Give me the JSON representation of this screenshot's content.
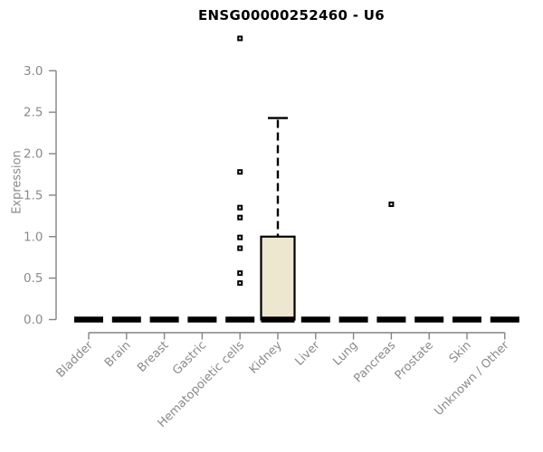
{
  "window": {
    "background_color": "#ffffff"
  },
  "chart_data": {
    "type": "boxplot",
    "title": "ENSG00000252460 - U6",
    "xlabel": "",
    "ylabel": "Expression",
    "ylim": [
      0.0,
      3.0
    ],
    "yticks": [
      0.0,
      0.5,
      1.0,
      1.5,
      2.0,
      2.5,
      3.0
    ],
    "ytick_labels": [
      "0.0",
      "0.5",
      "1.0",
      "1.5",
      "2.0",
      "2.5",
      "3.0"
    ],
    "grid": false,
    "legend": "none",
    "categories": [
      "Bladder",
      "Brain",
      "Breast",
      "Gastric",
      "Hematopoietic cells",
      "Kidney",
      "Liver",
      "Lung",
      "Pancreas",
      "Prostate",
      "Skin",
      "Unknown / Other"
    ],
    "boxes": [
      {
        "category": "Bladder",
        "min": 0,
        "q1": 0,
        "median": 0,
        "q3": 0,
        "max": 0,
        "outliers": []
      },
      {
        "category": "Brain",
        "min": 0,
        "q1": 0,
        "median": 0,
        "q3": 0,
        "max": 0,
        "outliers": []
      },
      {
        "category": "Breast",
        "min": 0,
        "q1": 0,
        "median": 0,
        "q3": 0,
        "max": 0,
        "outliers": []
      },
      {
        "category": "Gastric",
        "min": 0,
        "q1": 0,
        "median": 0,
        "q3": 0,
        "max": 0,
        "outliers": []
      },
      {
        "category": "Hematopoietic cells",
        "min": 0,
        "q1": 0,
        "median": 0,
        "q3": 0,
        "max": 0,
        "outliers": [
          3.39,
          1.78,
          1.35,
          1.23,
          0.99,
          0.86,
          0.56,
          0.44
        ]
      },
      {
        "category": "Kidney",
        "min": 0,
        "q1": 0,
        "median": 0,
        "q3": 1.0,
        "max": 2.43,
        "outliers": []
      },
      {
        "category": "Liver",
        "min": 0,
        "q1": 0,
        "median": 0,
        "q3": 0,
        "max": 0,
        "outliers": []
      },
      {
        "category": "Lung",
        "min": 0,
        "q1": 0,
        "median": 0,
        "q3": 0,
        "max": 0,
        "outliers": []
      },
      {
        "category": "Pancreas",
        "min": 0,
        "q1": 0,
        "median": 0,
        "q3": 0,
        "max": 0,
        "outliers": [
          1.39
        ]
      },
      {
        "category": "Prostate",
        "min": 0,
        "q1": 0,
        "median": 0,
        "q3": 0,
        "max": 0,
        "outliers": []
      },
      {
        "category": "Skin",
        "min": 0,
        "q1": 0,
        "median": 0,
        "q3": 0,
        "max": 0,
        "outliers": []
      },
      {
        "category": "Unknown / Other",
        "min": 0,
        "q1": 0,
        "median": 0,
        "q3": 0,
        "max": 0,
        "outliers": []
      }
    ],
    "colors": {
      "box_fill": "#ede7cf",
      "box_border": "#000000",
      "median": "#000000",
      "whisker": "#000000",
      "outlier_stroke": "#000000",
      "outlier_fill": "#ffffff",
      "axis": "#848484",
      "tick_label": "#8a8a8a",
      "title": "#000000"
    }
  }
}
